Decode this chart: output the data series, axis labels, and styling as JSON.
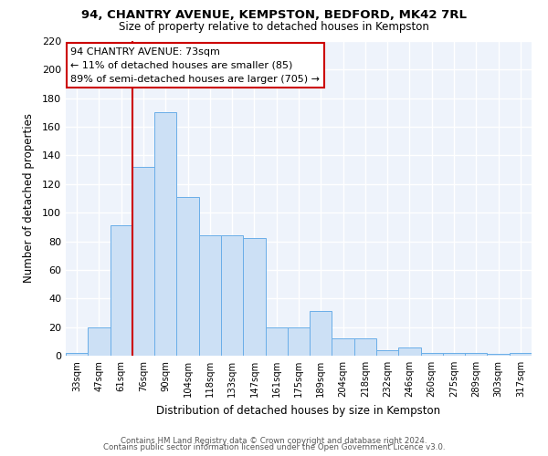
{
  "title": "94, CHANTRY AVENUE, KEMPSTON, BEDFORD, MK42 7RL",
  "subtitle": "Size of property relative to detached houses in Kempston",
  "xlabel": "Distribution of detached houses by size in Kempston",
  "ylabel": "Number of detached properties",
  "bar_color": "#cce0f5",
  "bar_edge_color": "#6aaee8",
  "background_color": "#eef3fb",
  "categories": [
    "33sqm",
    "47sqm",
    "61sqm",
    "76sqm",
    "90sqm",
    "104sqm",
    "118sqm",
    "133sqm",
    "147sqm",
    "161sqm",
    "175sqm",
    "189sqm",
    "204sqm",
    "218sqm",
    "232sqm",
    "246sqm",
    "260sqm",
    "275sqm",
    "289sqm",
    "303sqm",
    "317sqm"
  ],
  "values": [
    2,
    20,
    91,
    132,
    170,
    111,
    84,
    84,
    82,
    20,
    20,
    31,
    12,
    12,
    4,
    6,
    2,
    2,
    2,
    1,
    2
  ],
  "ylim": [
    0,
    220
  ],
  "yticks": [
    0,
    20,
    40,
    60,
    80,
    100,
    120,
    140,
    160,
    180,
    200,
    220
  ],
  "vline_color": "#cc0000",
  "vline_position": 2.5,
  "annotation_title": "94 CHANTRY AVENUE: 73sqm",
  "annotation_line1": "← 11% of detached houses are smaller (85)",
  "annotation_line2": "89% of semi-detached houses are larger (705) →",
  "annotation_box_edge": "#cc0000",
  "footer1": "Contains HM Land Registry data © Crown copyright and database right 2024.",
  "footer2": "Contains public sector information licensed under the Open Government Licence v3.0."
}
